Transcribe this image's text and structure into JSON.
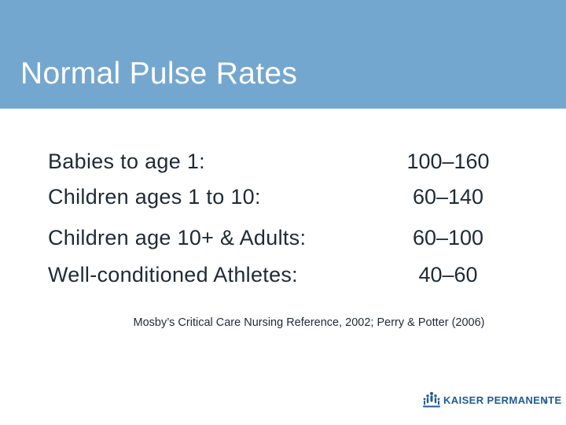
{
  "slide": {
    "title": "Normal Pulse Rates",
    "rows": [
      {
        "label": "Babies to age 1:",
        "value": "100–160"
      },
      {
        "label": "Children ages 1 to 10:",
        "value": "60–140"
      },
      {
        "label": "Children age 10+ & Adults:",
        "value": "60–100"
      },
      {
        "label": "Well-conditioned Athletes:",
        "value": "40–60"
      }
    ],
    "citation": "Mosby’s Critical Care Nursing Reference, 2002; Perry & Potter (2006)"
  },
  "logo": {
    "text": "KAISER PERMANENTE",
    "registered": "®",
    "icon": "kaiser-people-icon"
  },
  "colors": {
    "header": "#74a7cf",
    "title": "#ffffff",
    "text": "#1f2a36",
    "logo": "#1d5b93"
  }
}
